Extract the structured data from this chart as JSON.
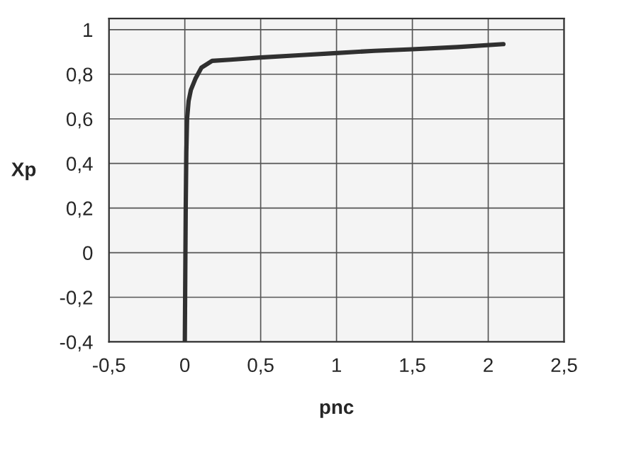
{
  "chart_data": {
    "type": "line",
    "xlabel": "pnc",
    "ylabel": "Xp",
    "series": [
      {
        "color": "#303030",
        "x": [
          0,
          0.003,
          0.006,
          0.01,
          0.015,
          0.025,
          0.04,
          0.07,
          0.11,
          0.18,
          0.3,
          0.5,
          0.75,
          1,
          1.25,
          1.5,
          1.8,
          2.1
        ],
        "values": [
          -0.4,
          -0.1,
          0.2,
          0.45,
          0.6,
          0.68,
          0.73,
          0.78,
          0.83,
          0.86,
          0.865,
          0.875,
          0.885,
          0.895,
          0.905,
          0.912,
          0.922,
          0.935
        ]
      }
    ],
    "xlim": [
      -0.5,
      2.5
    ],
    "ylim": [
      -0.4,
      1.05
    ],
    "xticks": [
      {
        "value": -0.5,
        "label": "-0,5"
      },
      0,
      {
        "value": 0.5,
        "label": "0,5"
      },
      1,
      {
        "value": 1.5,
        "label": "1,5"
      },
      2,
      {
        "value": 2.5,
        "label": "2,5"
      }
    ],
    "yticks": [
      {
        "value": -0.4,
        "label": "-0,4"
      },
      {
        "value": -0.2,
        "label": "-0,2"
      },
      0,
      {
        "value": 0.2,
        "label": "0,2"
      },
      {
        "value": 0.4,
        "label": "0,4"
      },
      {
        "value": 0.6,
        "label": "0,6"
      },
      {
        "value": 0.8,
        "label": "0,8"
      },
      1
    ],
    "grid": true,
    "legend": false,
    "marker": "none",
    "line_style": "solid"
  }
}
